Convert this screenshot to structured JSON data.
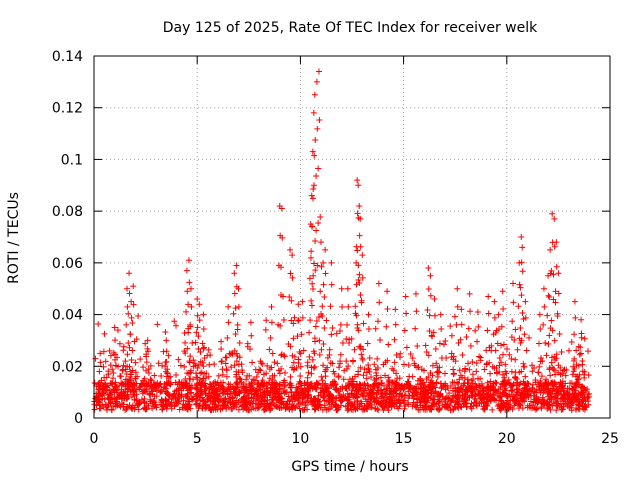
{
  "chart_data": {
    "type": "scatter",
    "title": "Day 125 of 2025, Rate Of TEC Index for receiver welk",
    "xlabel": "GPS time / hours",
    "ylabel": "ROTI / TECUs",
    "xlim": [
      0,
      25
    ],
    "ylim": [
      0,
      0.14
    ],
    "xticks": [
      0,
      5,
      10,
      15,
      20,
      25
    ],
    "yticks": [
      0,
      0.02,
      0.04,
      0.06,
      0.08,
      0.1,
      0.12,
      0.14
    ],
    "xtick_labels": [
      "0",
      "5",
      "10",
      "15",
      "20",
      "25"
    ],
    "ytick_labels": [
      "0",
      "0.02",
      "0.04",
      "0.06",
      "0.08",
      "0.1",
      "0.12",
      "0.14"
    ],
    "grid": true,
    "legend": "none",
    "marker": "+",
    "color": "#ff0000",
    "x_range_of_data": [
      0,
      24
    ],
    "baseline_level": 0.012,
    "series": [
      {
        "x": [
          0.3,
          1.0,
          1.6,
          1.7,
          1.8,
          1.9,
          2.6,
          3.5,
          4.5,
          4.6,
          4.7,
          5.0,
          5.1,
          5.3,
          6.5,
          6.8,
          6.9,
          7.0,
          7.6,
          8.6,
          9.0,
          9.1,
          9.5,
          9.6,
          9.9,
          10.1,
          10.5,
          10.55,
          10.6,
          10.65,
          10.7,
          10.8,
          10.9,
          11.0,
          11.1,
          11.2,
          11.5,
          12.0,
          12.3,
          12.7,
          12.75,
          12.8,
          12.85,
          12.9,
          13.0,
          13.3,
          13.8,
          14.2,
          14.6,
          15.1,
          15.6,
          16.2,
          16.3,
          16.5,
          16.8,
          17.6,
          17.8,
          18.2,
          18.6,
          19.1,
          19.4,
          19.6,
          19.8,
          20.3,
          20.6,
          20.7,
          20.75,
          20.9,
          21.6,
          21.8,
          22.0,
          22.1,
          22.2,
          22.3,
          22.4,
          22.5,
          23.3,
          23.6
        ],
        "y": [
          0.025,
          0.035,
          0.05,
          0.056,
          0.045,
          0.051,
          0.03,
          0.03,
          0.057,
          0.061,
          0.05,
          0.046,
          0.044,
          0.04,
          0.043,
          0.056,
          0.059,
          0.05,
          0.037,
          0.043,
          0.082,
          0.081,
          0.065,
          0.063,
          0.044,
          0.045,
          0.075,
          0.086,
          0.103,
          0.118,
          0.125,
          0.13,
          0.134,
          0.068,
          0.06,
          0.065,
          0.06,
          0.05,
          0.05,
          0.06,
          0.092,
          0.09,
          0.082,
          0.077,
          0.063,
          0.04,
          0.052,
          0.049,
          0.042,
          0.047,
          0.048,
          0.058,
          0.055,
          0.046,
          0.04,
          0.05,
          0.042,
          0.048,
          0.041,
          0.047,
          0.045,
          0.04,
          0.049,
          0.052,
          0.06,
          0.07,
          0.066,
          0.045,
          0.04,
          0.05,
          0.055,
          0.065,
          0.079,
          0.077,
          0.068,
          0.056,
          0.045,
          0.038
        ]
      }
    ]
  }
}
